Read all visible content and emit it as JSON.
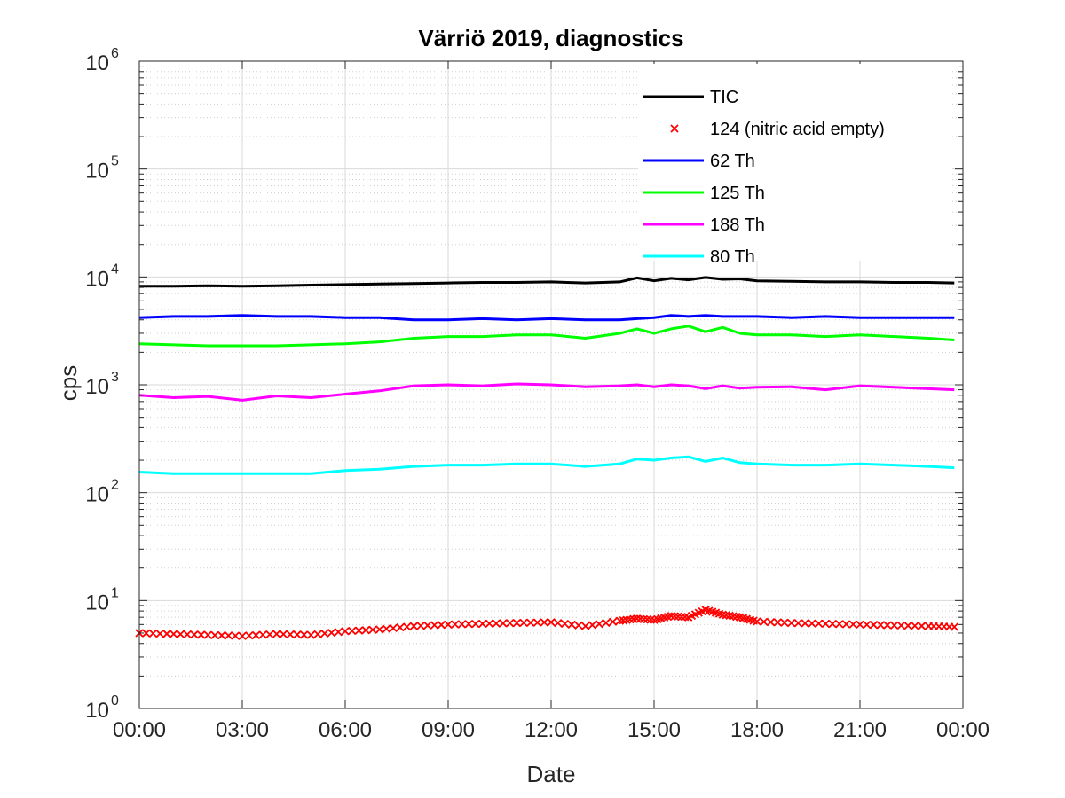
{
  "chart_data": {
    "type": "line",
    "title": "Värriö 2019, diagnostics",
    "xlabel": "Date",
    "ylabel": "cps",
    "yscale": "log",
    "ylim": [
      1,
      1000000
    ],
    "xlim": [
      "00:00",
      "24:00"
    ],
    "x_tick_labels": [
      "00:00",
      "03:00",
      "06:00",
      "09:00",
      "12:00",
      "15:00",
      "18:00",
      "21:00",
      "00:00"
    ],
    "y_tick_labels": [
      {
        "base": "10",
        "exp": "0"
      },
      {
        "base": "10",
        "exp": "1"
      },
      {
        "base": "10",
        "exp": "2"
      },
      {
        "base": "10",
        "exp": "3"
      },
      {
        "base": "10",
        "exp": "4"
      },
      {
        "base": "10",
        "exp": "5"
      },
      {
        "base": "10",
        "exp": "6"
      }
    ],
    "grid": true,
    "minor_grid": true,
    "legend_position": "top-right",
    "x": [
      "00:00",
      "01:00",
      "02:00",
      "03:00",
      "04:00",
      "05:00",
      "06:00",
      "07:00",
      "08:00",
      "09:00",
      "10:00",
      "11:00",
      "12:00",
      "13:00",
      "14:00",
      "14:30",
      "15:00",
      "15:30",
      "16:00",
      "16:30",
      "17:00",
      "17:30",
      "18:00",
      "19:00",
      "20:00",
      "21:00",
      "22:00",
      "23:00",
      "23:45"
    ],
    "series": [
      {
        "name": "TIC",
        "color": "#000000",
        "style": "line",
        "values": [
          8200,
          8200,
          8300,
          8200,
          8300,
          8400,
          8500,
          8600,
          8700,
          8800,
          8900,
          8900,
          9000,
          8800,
          9000,
          9800,
          9200,
          9700,
          9400,
          9900,
          9500,
          9600,
          9200,
          9100,
          9000,
          9000,
          8900,
          8900,
          8800
        ]
      },
      {
        "name": "124 (nitric acid empty)",
        "color": "#ff0000",
        "style": "marker-x",
        "values": [
          5.0,
          4.9,
          4.8,
          4.7,
          4.9,
          4.8,
          5.2,
          5.4,
          5.8,
          6.0,
          6.1,
          6.2,
          6.3,
          5.8,
          6.5,
          6.8,
          6.6,
          7.2,
          7.0,
          8.2,
          7.4,
          7.0,
          6.4,
          6.2,
          6.1,
          6.0,
          5.9,
          5.8,
          5.7
        ]
      },
      {
        "name": "62 Th",
        "color": "#0000ff",
        "style": "line",
        "values": [
          4200,
          4300,
          4300,
          4400,
          4300,
          4300,
          4200,
          4200,
          4000,
          4000,
          4100,
          4000,
          4100,
          4000,
          4000,
          4100,
          4200,
          4400,
          4300,
          4400,
          4300,
          4300,
          4300,
          4200,
          4300,
          4200,
          4200,
          4200,
          4200
        ]
      },
      {
        "name": "125 Th",
        "color": "#00ff00",
        "style": "line",
        "values": [
          2400,
          2350,
          2300,
          2300,
          2300,
          2350,
          2400,
          2500,
          2700,
          2800,
          2800,
          2900,
          2900,
          2700,
          3000,
          3300,
          3000,
          3300,
          3500,
          3100,
          3400,
          3000,
          2900,
          2900,
          2800,
          2900,
          2800,
          2700,
          2600
        ]
      },
      {
        "name": "188 Th",
        "color": "#ff00ff",
        "style": "line",
        "values": [
          800,
          760,
          780,
          720,
          790,
          760,
          820,
          880,
          980,
          1000,
          980,
          1020,
          1000,
          960,
          980,
          1000,
          960,
          1000,
          980,
          920,
          980,
          930,
          950,
          960,
          900,
          980,
          950,
          920,
          900
        ]
      },
      {
        "name": "80 Th",
        "color": "#00ffff",
        "style": "line",
        "values": [
          155,
          150,
          150,
          150,
          150,
          150,
          160,
          165,
          175,
          180,
          180,
          185,
          185,
          175,
          185,
          205,
          200,
          210,
          215,
          195,
          210,
          190,
          185,
          180,
          180,
          185,
          180,
          175,
          170
        ]
      }
    ]
  }
}
